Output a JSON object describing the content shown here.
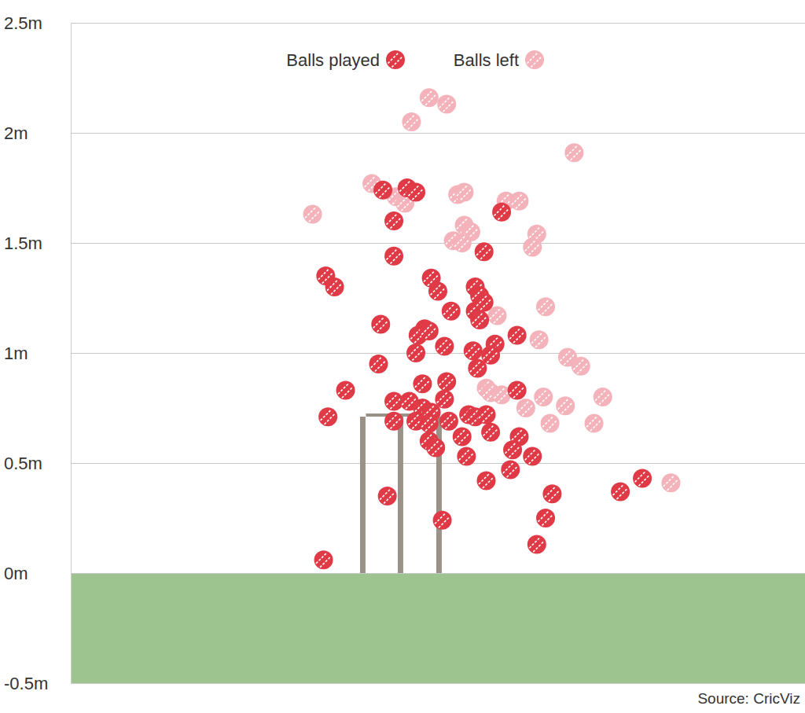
{
  "chart_data": {
    "type": "scatter",
    "source": "Source: CricViz",
    "xlim": [
      -1.5,
      1.84
    ],
    "ylim": [
      -0.5,
      2.5
    ],
    "yticks": [
      {
        "value": -0.5,
        "label": "-0.5m"
      },
      {
        "value": 0,
        "label": "0m"
      },
      {
        "value": 0.5,
        "label": "0.5m"
      },
      {
        "value": 1,
        "label": "1m"
      },
      {
        "value": 1.5,
        "label": "1.5m"
      },
      {
        "value": 2,
        "label": "2m"
      },
      {
        "value": 2.5,
        "label": "2.5m"
      }
    ],
    "grid": true,
    "tick_labels": "y",
    "legend": "top",
    "series": [
      {
        "name": "Balls played",
        "color": "#e03a47",
        "x": [
          -0.08,
          0.03,
          0.07,
          -0.03,
          0.46,
          -0.03,
          -0.34,
          -0.3,
          0.14,
          0.17,
          0.34,
          0.36,
          0.38,
          0.23,
          0.34,
          0.36,
          0.38,
          -0.09,
          0.11,
          0.08,
          0.13,
          0.2,
          0.33,
          0.53,
          0.43,
          0.41,
          0.35,
          -0.1,
          0.07,
          -0.25,
          0.1,
          0.21,
          0.2,
          0.53,
          -0.03,
          0.04,
          0.1,
          0.14,
          -0.33,
          -0.03,
          0.07,
          0.13,
          0.22,
          0.31,
          0.34,
          0.39,
          0.28,
          0.13,
          0.16,
          0.3,
          0.41,
          0.54,
          0.51,
          0.6,
          0.5,
          0.39,
          0.69,
          0.66,
          0.62,
          -0.06,
          0.19,
          -0.35,
          1.0,
          1.1
        ],
        "values": [
          1.74,
          1.75,
          1.73,
          1.6,
          1.64,
          1.44,
          1.35,
          1.3,
          1.34,
          1.28,
          1.3,
          1.26,
          1.46,
          1.19,
          1.19,
          1.15,
          1.23,
          1.13,
          1.11,
          1.08,
          1.1,
          1.03,
          1.01,
          1.08,
          1.04,
          0.99,
          0.93,
          0.95,
          1.0,
          0.83,
          0.86,
          0.87,
          0.79,
          0.83,
          0.78,
          0.78,
          0.75,
          0.73,
          0.71,
          0.69,
          0.69,
          0.68,
          0.69,
          0.72,
          0.71,
          0.72,
          0.62,
          0.6,
          0.57,
          0.53,
          0.64,
          0.62,
          0.56,
          0.53,
          0.47,
          0.42,
          0.36,
          0.25,
          0.13,
          0.35,
          0.24,
          0.06,
          0.37,
          0.43
        ]
      },
      {
        "name": "Balls left",
        "color": "#f4b3bb",
        "x": [
          -0.4,
          0.13,
          0.21,
          0.05,
          0.79,
          -0.13,
          -0.02,
          0.02,
          0.26,
          0.29,
          0.48,
          0.54,
          0.29,
          0.32,
          0.24,
          0.28,
          0.62,
          0.6,
          0.66,
          0.44,
          0.63,
          0.76,
          0.82,
          0.39,
          0.41,
          0.46,
          0.57,
          0.65,
          0.75,
          0.68,
          0.92,
          0.88,
          1.23
        ],
        "values": [
          1.63,
          2.16,
          2.13,
          2.05,
          1.91,
          1.77,
          1.71,
          1.68,
          1.72,
          1.73,
          1.69,
          1.69,
          1.58,
          1.55,
          1.51,
          1.5,
          1.54,
          1.48,
          1.21,
          1.17,
          1.06,
          0.98,
          0.94,
          0.84,
          0.82,
          0.81,
          0.75,
          0.8,
          0.76,
          0.68,
          0.8,
          0.68,
          0.41
        ]
      }
    ]
  }
}
